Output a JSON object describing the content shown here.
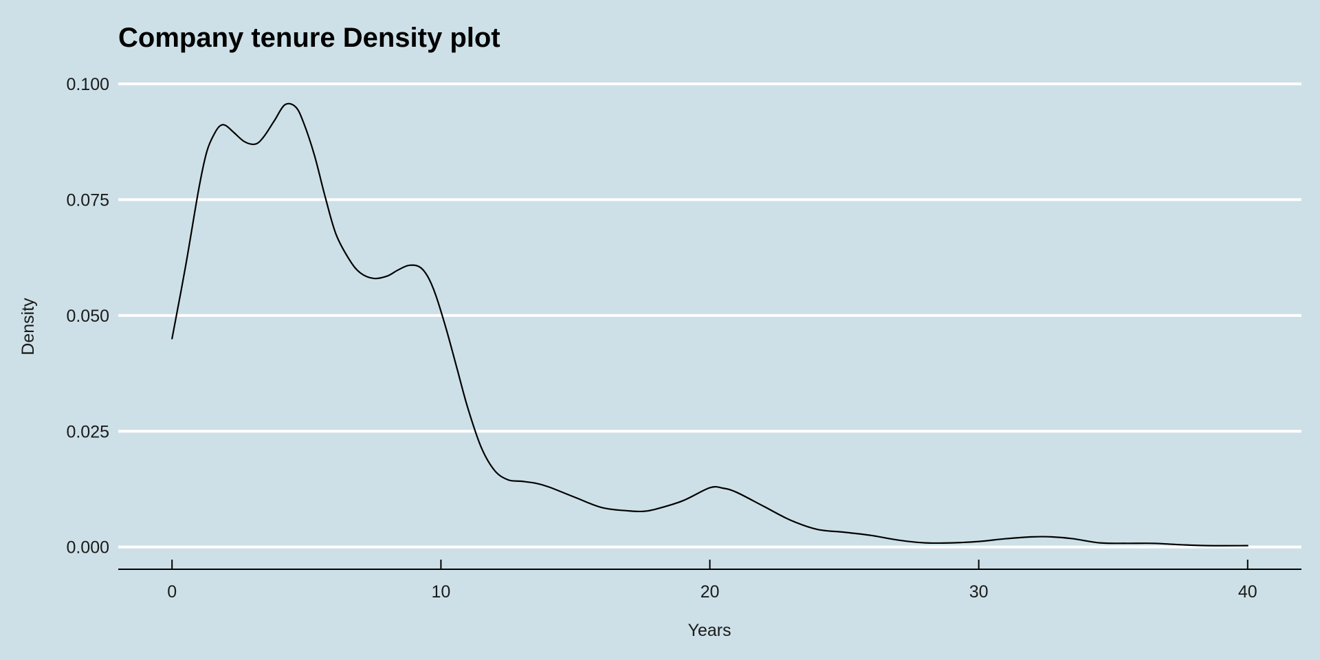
{
  "chart_data": {
    "type": "line",
    "title": "Company tenure Density plot",
    "xlabel": "Years",
    "ylabel": "Density",
    "xlim": [
      -2,
      42
    ],
    "ylim": [
      -0.0045,
      0.1
    ],
    "grid": "horizontal major lines",
    "legend": "none",
    "x_ticks": [
      0,
      10,
      20,
      30,
      40
    ],
    "x_tick_labels": [
      "0",
      "10",
      "20",
      "30",
      "40"
    ],
    "y_ticks": [
      0,
      0.025,
      0.05,
      0.075,
      0.1
    ],
    "y_tick_labels": [
      "0.000",
      "0.025",
      "0.050",
      "0.075",
      "0.100"
    ],
    "colors": {
      "background": "#cde0e7",
      "grid": "#ffffff",
      "line": "#000000"
    },
    "series": [
      {
        "x": [
          0,
          0.5,
          1,
          1.3,
          1.6,
          1.8,
          2.0,
          2.3,
          2.7,
          3.1,
          3.4,
          3.8,
          4.2,
          4.6,
          4.9,
          5.3,
          5.7,
          6.1,
          6.6,
          7.0,
          7.5,
          8.0,
          8.4,
          8.8,
          9.2,
          9.5,
          9.8,
          10.2,
          10.6,
          11.0,
          11.5,
          12.0,
          12.5,
          13.0,
          13.5,
          14.0,
          15.0,
          16.0,
          17.0,
          17.5,
          18.0,
          19.0,
          20.0,
          20.5,
          21.0,
          22.0,
          23.0,
          24.0,
          25.0,
          26.0,
          27.0,
          28.0,
          29.0,
          30.0,
          31.0,
          32.0,
          32.7,
          33.5,
          34.5,
          35.5,
          36.5,
          37.5,
          38.5,
          40.0
        ],
        "y": [
          0.045,
          0.0605,
          0.0775,
          0.0855,
          0.0895,
          0.091,
          0.091,
          0.0895,
          0.0875,
          0.087,
          0.0885,
          0.092,
          0.0955,
          0.095,
          0.0915,
          0.0845,
          0.0755,
          0.0675,
          0.062,
          0.0592,
          0.058,
          0.0585,
          0.0598,
          0.0608,
          0.0605,
          0.0585,
          0.0545,
          0.047,
          0.0385,
          0.03,
          0.0215,
          0.0165,
          0.0145,
          0.0142,
          0.0138,
          0.013,
          0.0107,
          0.0085,
          0.0078,
          0.0077,
          0.0082,
          0.01,
          0.0128,
          0.0127,
          0.0118,
          0.0088,
          0.0058,
          0.0038,
          0.0032,
          0.0025,
          0.0015,
          0.0009,
          0.0009,
          0.0012,
          0.0018,
          0.0022,
          0.0022,
          0.0018,
          0.0009,
          0.0008,
          0.0008,
          0.0005,
          0.0003,
          0.0003
        ]
      }
    ]
  }
}
